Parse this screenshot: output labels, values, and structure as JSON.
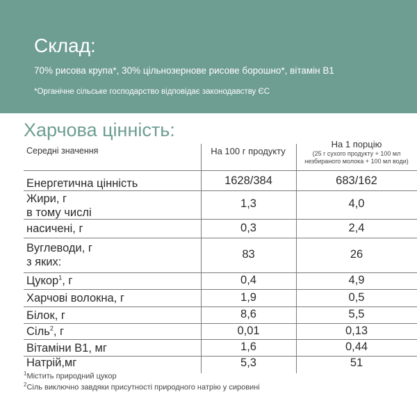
{
  "banner": {
    "title": "Склад:",
    "composition": "70% рисова крупа*, 30% цільнозернове рисове борошно*, вітамін В1",
    "organic_note": "*Органічне сільське господарство відповідає законодавству ЄС"
  },
  "nutrition": {
    "title": "Харчова цінність:",
    "header": {
      "average": "Середні значення",
      "per_100g": "На 100 г продукту",
      "per_portion": "На 1 порцію",
      "per_portion_note_1": "(25 г сухого продукту + 100 мл",
      "per_portion_note_2": "незбираного молока + 100 мл води)"
    },
    "rows": [
      {
        "label": "Енергетична цінність",
        "per_100g": "1628/384",
        "per_portion": "683/162"
      },
      {
        "label": "Жири, г",
        "label_2": "в тому числі",
        "per_100g": "1,3",
        "per_portion": "4,0"
      },
      {
        "label": "насичені, г",
        "per_100g": "0,3",
        "per_portion": "2,4"
      },
      {
        "label": "Вуглеводи, г",
        "label_2": "з яких:",
        "per_100g": "83",
        "per_portion": "26"
      },
      {
        "label": "Цукор",
        "sup": "1",
        "suffix": ", г",
        "per_100g": "0,4",
        "per_portion": "4,9"
      },
      {
        "label": "Харчові волокна, г",
        "per_100g": "1,9",
        "per_portion": "0,5"
      },
      {
        "label": "Білок, г",
        "per_100g": "8,6",
        "per_portion": "5,5"
      },
      {
        "label": "Сіль",
        "sup": "2",
        "suffix": ", г",
        "per_100g": "0,01",
        "per_portion": "0,13"
      },
      {
        "label": "Вітаміни В1, мг",
        "per_100g": "1,6",
        "per_portion": "0,44"
      },
      {
        "label": "Натрій,мг",
        "per_100g": "5,3",
        "per_portion": "51"
      }
    ]
  },
  "footnotes": [
    {
      "mark": "1",
      "text": "Містить природний цукор"
    },
    {
      "mark": "2",
      "text": "Сіль виключно завдяки присутності природного натрію у сировині"
    }
  ]
}
